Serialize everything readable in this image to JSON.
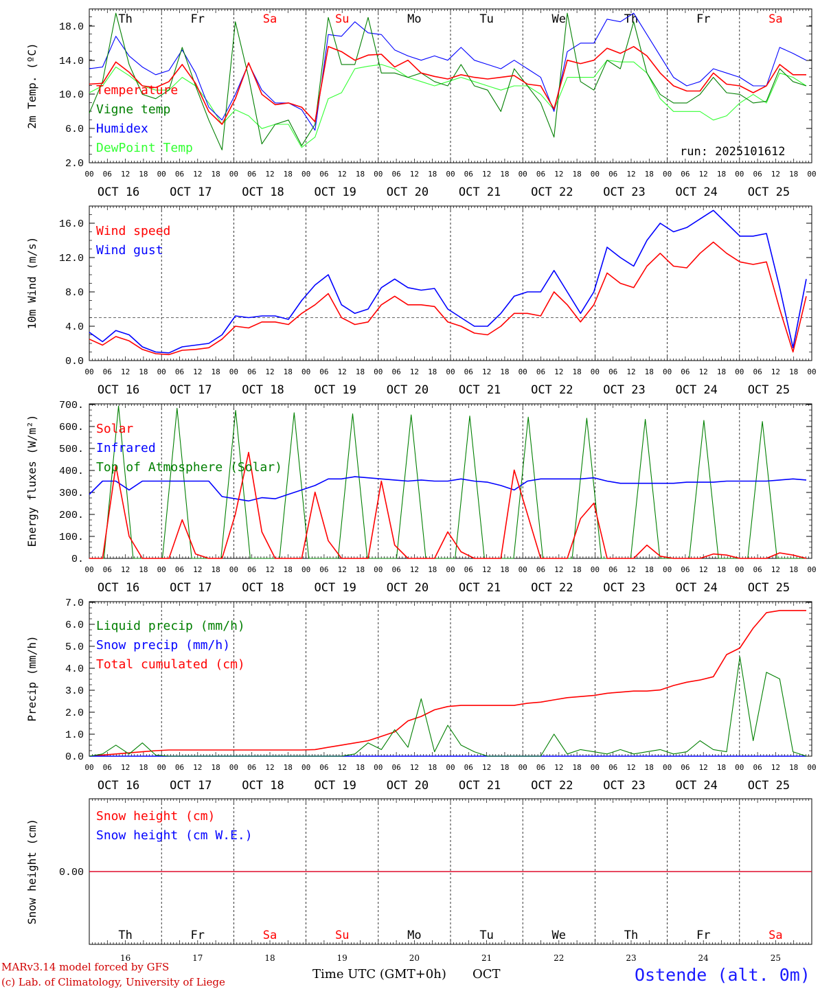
{
  "run_label": "run: 2025101612",
  "footer": {
    "model": "MARv3.14 model forced by GFS",
    "credit": "(c) Lab. of Climatology, University of Liege",
    "xlabel": "Time UTC (GMT+0h)",
    "month": "OCT",
    "station": "Ostende (alt. 0m)"
  },
  "days": [
    {
      "dow": "Th",
      "date": "OCT 16",
      "num": "16",
      "weekend": false
    },
    {
      "dow": "Fr",
      "date": "OCT 17",
      "num": "17",
      "weekend": false
    },
    {
      "dow": "Sa",
      "date": "OCT 18",
      "num": "18",
      "weekend": true
    },
    {
      "dow": "Su",
      "date": "OCT 19",
      "num": "19",
      "weekend": true
    },
    {
      "dow": "Mo",
      "date": "OCT 20",
      "num": "20",
      "weekend": false
    },
    {
      "dow": "Tu",
      "date": "OCT 21",
      "num": "21",
      "weekend": false
    },
    {
      "dow": "We",
      "date": "OCT 22",
      "num": "22",
      "weekend": false
    },
    {
      "dow": "Th",
      "date": "OCT 23",
      "num": "23",
      "weekend": false
    },
    {
      "dow": "Fr",
      "date": "OCT 24",
      "num": "24",
      "weekend": false
    },
    {
      "dow": "Sa",
      "date": "OCT 25",
      "num": "25",
      "weekend": true
    }
  ],
  "hour_labels": [
    "00",
    "06",
    "12",
    "18"
  ],
  "colors": {
    "red": "#ff0000",
    "green": "#007f00",
    "blue": "#0000ff",
    "lightgreen": "#33ff33",
    "weekend": "#ff0000"
  },
  "chart_data": [
    {
      "type": "line",
      "ylabel": "2m Temp. (ºC)",
      "ylim": [
        2,
        20
      ],
      "yticks": [
        "2.0",
        "6.0",
        "10.0",
        "14.0",
        "18.0"
      ],
      "x": "hours from OCT 16 00 UTC, every 6h",
      "series": [
        {
          "name": "Temperature",
          "color": "red",
          "values": [
            11.2,
            11.3,
            13.8,
            12.6,
            11,
            10.8,
            11.5,
            13.5,
            11.3,
            8,
            6.5,
            9.5,
            13.7,
            10,
            8.8,
            9,
            8.5,
            6.8,
            15.6,
            15,
            14,
            14.6,
            14.7,
            13.2,
            14,
            12.5,
            12.1,
            11.8,
            12.3,
            12,
            11.8,
            12,
            12.2,
            11.2,
            11,
            8.3,
            14,
            13.6,
            14,
            15.4,
            14.8,
            15.6,
            14.5,
            12.5,
            11,
            10.4,
            10.4,
            12.5,
            11.2,
            11,
            10.2,
            11,
            13.5,
            12.3,
            12.3
          ]
        },
        {
          "name": "Vigne temp",
          "color": "green",
          "values": [
            7.8,
            11.5,
            19.5,
            13.5,
            10,
            9.5,
            10.5,
            15.5,
            11,
            7,
            3.5,
            18.5,
            12,
            4.2,
            6.5,
            7,
            4,
            6.5,
            19,
            13.5,
            13.5,
            19,
            12.5,
            12.5,
            12,
            12.5,
            11.5,
            11,
            13.5,
            11,
            10.5,
            8,
            13,
            11,
            9,
            5,
            19.5,
            11.5,
            10.5,
            14,
            13,
            18.5,
            12.5,
            10,
            9,
            9,
            10,
            12,
            10.2,
            10,
            9,
            9.2,
            13,
            11.5,
            11
          ]
        },
        {
          "name": "Humidex",
          "color": "blue",
          "values": [
            13,
            13.2,
            16.8,
            14.5,
            13.2,
            12.3,
            12.8,
            15.2,
            12.5,
            8.5,
            7,
            10,
            13.6,
            10.5,
            9,
            9,
            8.2,
            5.8,
            17,
            16.8,
            18.5,
            17.2,
            17,
            15.2,
            14.5,
            14,
            14.5,
            14,
            15.5,
            14,
            13.5,
            13,
            14,
            13,
            12,
            8,
            15,
            16,
            16,
            18.8,
            18.5,
            19.5,
            17,
            14.5,
            12,
            11,
            11.5,
            13,
            12.5,
            12,
            11,
            11,
            15.5,
            14.8,
            14
          ]
        },
        {
          "name": "DewPoint Temp",
          "color": "lightgreen",
          "values": [
            10.2,
            11,
            13.2,
            12.2,
            11,
            10.5,
            10.5,
            12,
            11,
            9,
            6.5,
            8.2,
            7.5,
            6,
            6.5,
            6.5,
            3.8,
            5,
            9.5,
            10.2,
            13,
            13.3,
            13.5,
            13,
            12,
            11.5,
            11,
            11.5,
            12,
            11.5,
            11,
            10.5,
            11,
            11,
            10,
            8.2,
            12,
            12,
            12,
            14,
            13.8,
            13.8,
            12.5,
            9.5,
            8,
            8,
            8,
            7,
            7.5,
            9,
            10,
            9,
            12.5,
            12,
            11
          ]
        }
      ]
    },
    {
      "type": "line",
      "ylabel": "10m Wind (m/s)",
      "ylim": [
        0,
        18
      ],
      "yticks": [
        "0.0",
        "4.0",
        "8.0",
        "12.0",
        "16.0"
      ],
      "reference_line": 5,
      "series": [
        {
          "name": "Wind speed",
          "color": "red",
          "values": [
            2.5,
            1.8,
            2.8,
            2.3,
            1.3,
            0.8,
            0.7,
            1.2,
            1.3,
            1.5,
            2.5,
            4,
            3.8,
            4.5,
            4.5,
            4.2,
            5.5,
            6.5,
            7.8,
            5,
            4.2,
            4.5,
            6.5,
            7.5,
            6.5,
            6.5,
            6.3,
            4.5,
            4,
            3.2,
            3,
            4,
            5.5,
            5.5,
            5.2,
            8,
            6.5,
            4.5,
            6.5,
            10.2,
            9,
            8.5,
            11,
            12.5,
            11,
            10.8,
            12.5,
            13.8,
            12.5,
            11.5,
            11.2,
            11.5,
            6,
            1,
            7.5
          ]
        },
        {
          "name": "Wind gust",
          "color": "blue",
          "values": [
            3.3,
            2.2,
            3.5,
            3,
            1.6,
            1,
            0.9,
            1.6,
            1.8,
            2,
            3,
            5.2,
            5,
            5.2,
            5.2,
            4.8,
            7,
            8.8,
            10,
            6.5,
            5.5,
            6,
            8.5,
            9.5,
            8.5,
            8.2,
            8.4,
            6,
            5,
            4,
            4,
            5.5,
            7.5,
            8,
            8,
            10.5,
            8,
            5.5,
            8,
            13.2,
            12,
            11,
            14,
            16,
            15,
            15.5,
            16.5,
            17.5,
            16,
            14.5,
            14.5,
            14.8,
            8.5,
            1.5,
            9.5
          ]
        }
      ]
    },
    {
      "type": "line",
      "ylabel": "Energy fluxes (W/m²)",
      "ylim": [
        0,
        700
      ],
      "yticks": [
        "0.",
        "100.",
        "200.",
        "300.",
        "400.",
        "500.",
        "600.",
        "700."
      ],
      "series": [
        {
          "name": "Solar",
          "color": "red",
          "values": [
            0,
            0,
            420,
            100,
            0,
            0,
            0,
            175,
            20,
            0,
            0,
            200,
            480,
            120,
            0,
            0,
            0,
            300,
            80,
            0,
            0,
            0,
            350,
            60,
            0,
            0,
            0,
            120,
            30,
            0,
            0,
            0,
            400,
            200,
            0,
            0,
            0,
            180,
            250,
            0,
            0,
            0,
            60,
            10,
            0,
            0,
            0,
            20,
            15,
            0,
            0,
            0,
            25,
            15,
            0
          ]
        },
        {
          "name": "Infrared",
          "color": "blue",
          "values": [
            290,
            350,
            350,
            310,
            350,
            350,
            350,
            350,
            350,
            350,
            280,
            270,
            260,
            275,
            270,
            290,
            310,
            330,
            360,
            360,
            370,
            365,
            360,
            355,
            350,
            355,
            350,
            350,
            360,
            350,
            345,
            330,
            310,
            350,
            360,
            360,
            360,
            360,
            365,
            350,
            340,
            340,
            340,
            340,
            340,
            345,
            345,
            345,
            350,
            350,
            350,
            350,
            355,
            360,
            355
          ]
        },
        {
          "name": "Top of Atmosphere (Solar)",
          "color": "green",
          "values": [
            0,
            0,
            690,
            0,
            0,
            0,
            680,
            0,
            0,
            0,
            670,
            0,
            0,
            0,
            660,
            0,
            0,
            0,
            655,
            0,
            0,
            0,
            650,
            0,
            0,
            0,
            645,
            0,
            0,
            0,
            640,
            0,
            0,
            0,
            635,
            0,
            0,
            0,
            630,
            0,
            0,
            0,
            625,
            0,
            0,
            0,
            620,
            0,
            0,
            0
          ]
        }
      ]
    },
    {
      "type": "line",
      "ylabel": "Precip (mm/h)",
      "ylim": [
        0,
        7
      ],
      "yticks": [
        "0.0",
        "1.0",
        "2.0",
        "3.0",
        "4.0",
        "5.0",
        "6.0",
        "7.0"
      ],
      "series": [
        {
          "name": "Liquid precip (mm/h)",
          "color": "green",
          "values": [
            0,
            0.1,
            0.5,
            0.1,
            0.6,
            0.05,
            0,
            0,
            0,
            0,
            0,
            0,
            0,
            0,
            0,
            0,
            0,
            0,
            0,
            0,
            0.1,
            0.6,
            0.3,
            1.2,
            0.4,
            2.6,
            0.2,
            1.4,
            0.5,
            0.2,
            0,
            0,
            0,
            0,
            0,
            1,
            0.1,
            0.3,
            0.2,
            0.1,
            0.3,
            0.1,
            0.2,
            0.3,
            0.1,
            0.2,
            0.7,
            0.3,
            0.2,
            4.5,
            0.7,
            3.8,
            3.5,
            0.2,
            0
          ]
        },
        {
          "name": "Snow precip (mm/h)",
          "color": "blue",
          "values": [
            0,
            0,
            0,
            0,
            0,
            0,
            0,
            0,
            0,
            0,
            0,
            0,
            0,
            0,
            0,
            0,
            0,
            0,
            0,
            0,
            0,
            0,
            0,
            0,
            0,
            0,
            0,
            0,
            0,
            0,
            0,
            0,
            0,
            0,
            0,
            0,
            0,
            0,
            0,
            0,
            0,
            0,
            0,
            0,
            0,
            0,
            0,
            0,
            0,
            0,
            0,
            0,
            0,
            0,
            0
          ]
        },
        {
          "name": "Total cumulated (cm)",
          "color": "red",
          "values": [
            0,
            0.05,
            0.1,
            0.15,
            0.2,
            0.25,
            0.28,
            0.28,
            0.28,
            0.28,
            0.28,
            0.28,
            0.28,
            0.28,
            0.28,
            0.28,
            0.28,
            0.3,
            0.4,
            0.5,
            0.6,
            0.7,
            0.9,
            1.1,
            1.6,
            1.8,
            2.1,
            2.25,
            2.3,
            2.3,
            2.3,
            2.3,
            2.3,
            2.4,
            2.45,
            2.55,
            2.65,
            2.7,
            2.75,
            2.85,
            2.9,
            2.95,
            2.95,
            3,
            3.2,
            3.35,
            3.45,
            3.6,
            4.6,
            4.9,
            5.8,
            6.5,
            6.6,
            6.6,
            6.6
          ]
        }
      ]
    },
    {
      "type": "line",
      "ylabel": "Snow height (cm)",
      "ylim": [
        -1,
        1
      ],
      "yticks": [
        "0.00"
      ],
      "series": [
        {
          "name": "Snow height (cm)",
          "color": "red",
          "values": [
            0,
            0
          ]
        },
        {
          "name": "Snow height (cm W.E.)",
          "color": "blue",
          "values": [
            0,
            0
          ]
        }
      ]
    }
  ]
}
